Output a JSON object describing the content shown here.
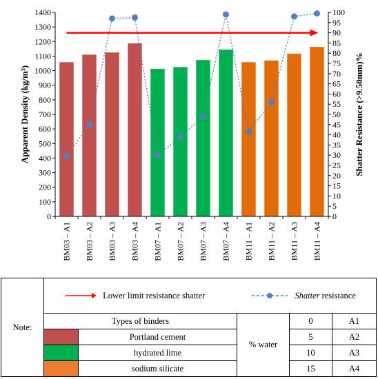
{
  "chart_data": {
    "type": "bar",
    "categories": [
      "BM03 – A1",
      "BM03 – A2",
      "BM03 – A3",
      "BM03 – A4",
      "BM07 – A1",
      "BM07 – A2",
      "BM07 – A3",
      "BM07 – A4",
      "BM11 – A1",
      "BM11 – A2",
      "BM11 – A3",
      "BM11 – A4"
    ],
    "bar_colors": [
      "#C0504D",
      "#C0504D",
      "#C0504D",
      "#C0504D",
      "#00B050",
      "#00B050",
      "#00B050",
      "#00B050",
      "#E36C0A",
      "#E36C0A",
      "#E36C0A",
      "#E36C0A"
    ],
    "series": [
      {
        "type": "bar",
        "axis": "left",
        "values": [
          1058,
          1110,
          1125,
          1188,
          1012,
          1025,
          1073,
          1145,
          1058,
          1070,
          1117,
          1163
        ]
      },
      {
        "type": "line",
        "axis": "right",
        "name": "Shatter resistance",
        "color": "#4F81BD",
        "values": [
          29.5,
          45,
          97,
          97.5,
          30,
          39,
          49,
          99,
          41.5,
          56,
          98,
          99.5
        ]
      }
    ],
    "ylabel": "Apparent Density (kg/m³)",
    "y2label": "Shatter Resistance (>9.50mm)%",
    "ylim": [
      0,
      1400
    ],
    "y_ticks": [
      0,
      100,
      200,
      300,
      400,
      500,
      600,
      700,
      800,
      900,
      1000,
      1100,
      1200,
      1300,
      1400
    ],
    "y2lim": [
      0,
      100
    ],
    "y2_ticks": [
      0,
      5,
      10,
      15,
      20,
      25,
      30,
      35,
      40,
      45,
      50,
      55,
      60,
      65,
      70,
      75,
      80,
      85,
      90,
      95,
      100
    ],
    "limit_line": {
      "name": "Lower limit resistance shatter",
      "value": 90,
      "axis": "right",
      "color": "#FF0000"
    },
    "grid": false
  },
  "legend": {
    "note_label": "Note:",
    "lower_limit_label": "Lower limit resistance shatter",
    "shatter_italic": "Shatter",
    "shatter_rest": " resistance",
    "binder_header": "Types of binders",
    "binders": [
      {
        "label": "Portland cement",
        "color": "#C0504D"
      },
      {
        "label": "hydrated lime",
        "color": "#00B050"
      },
      {
        "label": "sodium silicate",
        "color": "#ED7D31"
      }
    ],
    "water_label": "% water",
    "water_rows": [
      {
        "value": "0",
        "code": "A1"
      },
      {
        "value": "5",
        "code": "A2"
      },
      {
        "value": "10",
        "code": "A3"
      },
      {
        "value": "15",
        "code": "A4"
      }
    ]
  }
}
